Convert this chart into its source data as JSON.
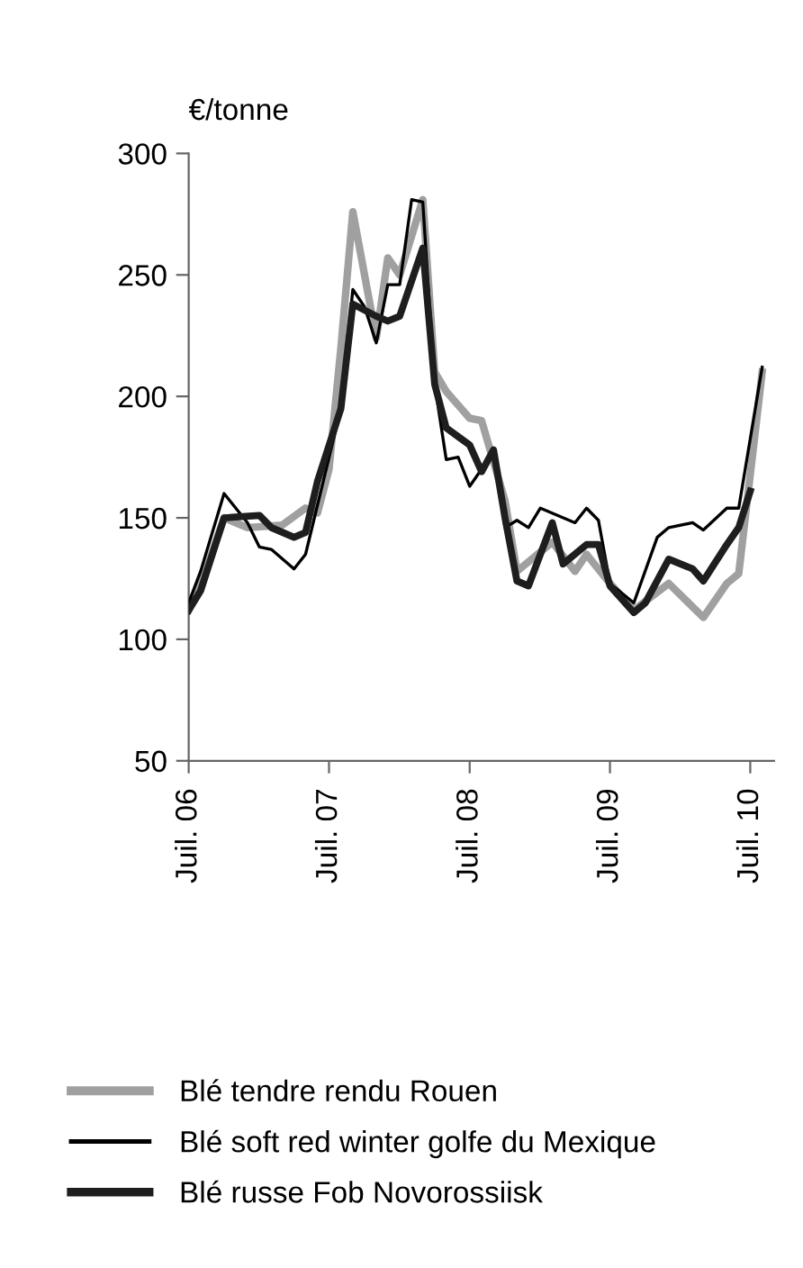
{
  "chart_data": {
    "type": "line",
    "ylabel": "€/tonne",
    "xlim": [
      "2006-07",
      "2010-09"
    ],
    "ylim": [
      50,
      300
    ],
    "yticks": [
      50,
      100,
      150,
      200,
      250,
      300
    ],
    "xticks": [
      {
        "value": "2006-07",
        "label": "Juil. 06"
      },
      {
        "value": "2007-07",
        "label": "Juil. 07"
      },
      {
        "value": "2008-07",
        "label": "Juil. 08"
      },
      {
        "value": "2009-07",
        "label": "Juil. 09"
      },
      {
        "value": "2010-07",
        "label": "Juil. 10"
      }
    ],
    "grid": false,
    "legend": "bottom",
    "marker": "none",
    "line_style": "solid",
    "series": [
      {
        "name": "Blé tendre rendu Rouen",
        "color": "#a0a0a0",
        "x": [
          "2006-07",
          "2006-08",
          "2006-10",
          "2006-12",
          "2007-03",
          "2007-05",
          "2007-06",
          "2007-07",
          "2007-08",
          "2007-09",
          "2007-11",
          "2007-12",
          "2008-01",
          "2008-03",
          "2008-04",
          "2008-05",
          "2008-07",
          "2008-08",
          "2008-10",
          "2008-11",
          "2009-02",
          "2009-04",
          "2009-05",
          "2009-07",
          "2009-09",
          "2009-12",
          "2010-03",
          "2010-05",
          "2010-06",
          "2010-08"
        ],
        "values": [
          112,
          122,
          150,
          146,
          147,
          154,
          152,
          170,
          220,
          276,
          224,
          257,
          250,
          281,
          210,
          202,
          191,
          190,
          157,
          128,
          140,
          128,
          135,
          123,
          112,
          123,
          109,
          123,
          127,
          210
        ]
      },
      {
        "name": "Blé soft red winter golfe du Mexique",
        "color": "#000000",
        "x": [
          "2006-07",
          "2006-08",
          "2006-10",
          "2006-12",
          "2007-01",
          "2007-02",
          "2007-04",
          "2007-05",
          "2007-08",
          "2007-09",
          "2007-10",
          "2007-11",
          "2007-12",
          "2008-01",
          "2008-02",
          "2008-03",
          "2008-04",
          "2008-05",
          "2008-06",
          "2008-07",
          "2008-08",
          "2008-09",
          "2008-10",
          "2008-11",
          "2008-12",
          "2009-01",
          "2009-04",
          "2009-05",
          "2009-06",
          "2009-07",
          "2009-09",
          "2009-11",
          "2009-12",
          "2010-02",
          "2010-03",
          "2010-05",
          "2010-06",
          "2010-08"
        ],
        "values": [
          115,
          128,
          160,
          148,
          138,
          137,
          129,
          135,
          195,
          244,
          237,
          222,
          246,
          246,
          281,
          280,
          205,
          174,
          175,
          163,
          170,
          178,
          146,
          149,
          146,
          154,
          148,
          154,
          149,
          123,
          115,
          142,
          146,
          148,
          145,
          154,
          154,
          212
        ]
      },
      {
        "name": "Blé russe Fob Novorossiisk",
        "color": "#1e1e1e",
        "x": [
          "2006-07",
          "2006-08",
          "2006-10",
          "2007-01",
          "2007-02",
          "2007-04",
          "2007-05",
          "2007-06",
          "2007-08",
          "2007-09",
          "2007-11",
          "2007-12",
          "2008-01",
          "2008-03",
          "2008-04",
          "2008-05",
          "2008-07",
          "2008-08",
          "2008-09",
          "2008-10",
          "2008-11",
          "2008-12",
          "2009-02",
          "2009-03",
          "2009-05",
          "2009-06",
          "2009-07",
          "2009-09",
          "2009-10",
          "2009-12",
          "2010-02",
          "2010-03",
          "2010-05",
          "2010-06",
          "2010-07"
        ],
        "values": [
          112,
          120,
          150,
          151,
          146,
          142,
          144,
          165,
          195,
          238,
          233,
          231,
          233,
          261,
          205,
          187,
          180,
          169,
          178,
          150,
          124,
          122,
          148,
          131,
          139,
          139,
          122,
          111,
          115,
          133,
          129,
          124,
          139,
          146,
          161
        ]
      }
    ]
  }
}
